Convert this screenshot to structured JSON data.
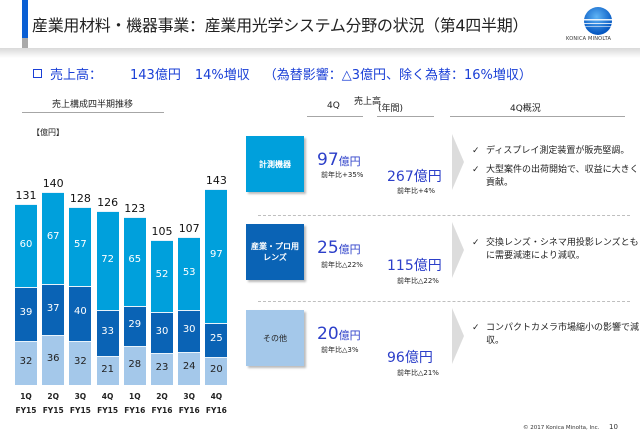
{
  "header": {
    "title": "産業用材料・機器事業：産業用光学システム分野の状況（第4四半期）",
    "logo_text": "KONICA MINOLTA"
  },
  "summary": {
    "label": "売上高：",
    "value": "143億円",
    "growth": "14%増収",
    "note": "（為替影響：△3億円、除く為替：16%増収）"
  },
  "section_headers": {
    "chart": "売上構成四半期推移",
    "q4": "4Q",
    "sales": "売上高",
    "annual": "(年間)",
    "overview": "4Q概況"
  },
  "chart_data": {
    "type": "bar",
    "stacked": true,
    "unit_label": "【億円】",
    "categories": [
      "1Q FY15",
      "2Q FY15",
      "3Q FY15",
      "4Q FY15",
      "1Q FY16",
      "2Q FY16",
      "3Q FY16",
      "4Q FY16"
    ],
    "category_lines": [
      [
        "1Q",
        "FY15"
      ],
      [
        "2Q",
        "FY15"
      ],
      [
        "3Q",
        "FY15"
      ],
      [
        "4Q",
        "FY15"
      ],
      [
        "1Q",
        "FY16"
      ],
      [
        "2Q",
        "FY16"
      ],
      [
        "3Q",
        "FY16"
      ],
      [
        "4Q",
        "FY16"
      ]
    ],
    "series": [
      {
        "name": "その他",
        "color": "#a4c8ea",
        "values": [
          32,
          36,
          32,
          21,
          28,
          23,
          24,
          20
        ]
      },
      {
        "name": "産業・プロ用レンズ",
        "color": "#0a63b5",
        "values": [
          39,
          37,
          40,
          33,
          29,
          30,
          30,
          25
        ]
      },
      {
        "name": "計測機器",
        "color": "#00a0dc",
        "values": [
          60,
          67,
          57,
          72,
          65,
          52,
          53,
          97
        ]
      }
    ],
    "totals": [
      131,
      140,
      128,
      126,
      123,
      105,
      107,
      143
    ],
    "ylim": [
      0,
      150
    ],
    "title": "売上構成四半期推移",
    "xlabel": "",
    "ylabel": "億円"
  },
  "segments": [
    {
      "name": "計測機器",
      "color": "#00a0dc",
      "q4_value": "97",
      "q4_unit": "億円",
      "q4_yoy": "前年比+35%",
      "annual_value": "267",
      "annual_unit": "億円",
      "annual_yoy": "前年比+4%",
      "notes": [
        "ディスプレイ測定装置が販売堅調。",
        "大型案件の出荷開始で、収益に大きく貢献。"
      ]
    },
    {
      "name": "産業・プロ用\nレンズ",
      "color": "#0a63b5",
      "q4_value": "25",
      "q4_unit": "億円",
      "q4_yoy": "前年比△22%",
      "annual_value": "115",
      "annual_unit": "億円",
      "annual_yoy": "前年比△22%",
      "notes": [
        "交換レンズ・シネマ用投影レンズともに需要減速により減収。"
      ]
    },
    {
      "name": "その他",
      "color": "#a4c8ea",
      "q4_value": "20",
      "q4_unit": "億円",
      "q4_yoy": "前年比△3%",
      "annual_value": "96",
      "annual_unit": "億円",
      "annual_yoy": "前年比△21%",
      "notes": [
        "コンパクトカメラ市場縮小の影響で減収。"
      ]
    }
  ],
  "footer": {
    "copyright": "© 2017 Konica Minolta, Inc.",
    "page_number": "10"
  },
  "icons": {
    "check": "✓",
    "bullet": "square-bullet-icon"
  }
}
